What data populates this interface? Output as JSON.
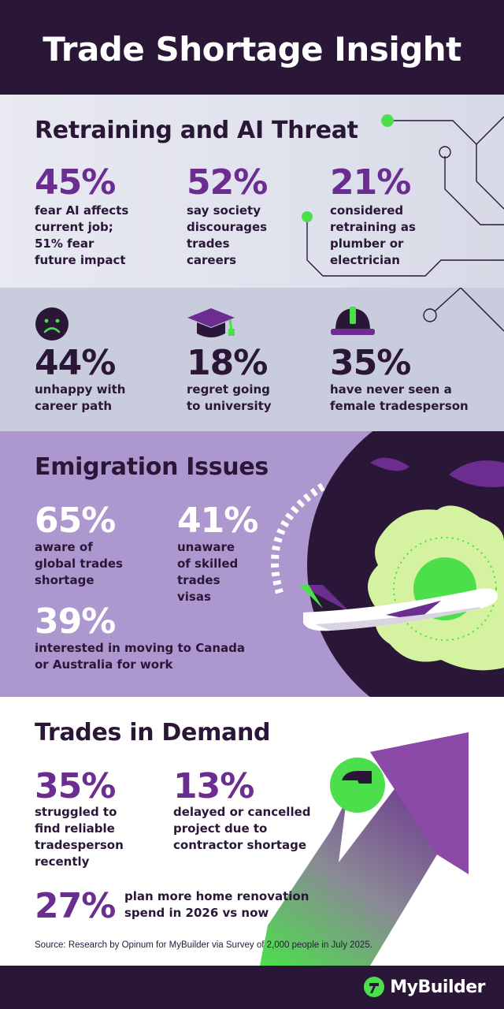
{
  "title": "Trade Shortage Insight",
  "retraining": {
    "heading": "Retraining and AI Threat",
    "stats": [
      {
        "value": "45%",
        "desc": [
          "fear AI affects",
          "current job;",
          "51% fear",
          "future impact"
        ]
      },
      {
        "value": "52%",
        "desc": [
          "say society",
          "discourages",
          "trades",
          "careers"
        ]
      },
      {
        "value": "21%",
        "desc": [
          "considered",
          "retraining as",
          "plumber or",
          "electrician"
        ]
      }
    ],
    "stats2": [
      {
        "icon": "sad-face-icon",
        "value": "44%",
        "desc": [
          "unhappy with",
          "career path"
        ]
      },
      {
        "icon": "graduation-cap-icon",
        "value": "18%",
        "desc": [
          "regret going",
          "to university"
        ]
      },
      {
        "icon": "hard-hat-icon",
        "value": "35%",
        "desc": [
          "have never seen a",
          "female tradesperson"
        ]
      }
    ]
  },
  "emigration": {
    "heading": "Emigration Issues",
    "stats": [
      {
        "value": "65%",
        "desc": [
          "aware of",
          "global trades",
          "shortage"
        ]
      },
      {
        "value": "41%",
        "desc": [
          "unaware",
          "of skilled",
          "trades",
          "visas"
        ]
      },
      {
        "value": "39%",
        "desc": [
          "interested in moving to Canada",
          "or Australia for work"
        ]
      }
    ]
  },
  "demand": {
    "heading": "Trades in Demand",
    "stats": [
      {
        "value": "35%",
        "desc": [
          "struggled to",
          "find reliable",
          "tradesperson",
          "recently"
        ]
      },
      {
        "value": "13%",
        "desc": [
          "delayed or cancelled",
          "project due to",
          "contractor shortage"
        ]
      },
      {
        "value": "27%",
        "desc": [
          "plan more home renovation",
          "spend in 2026 vs now"
        ]
      }
    ]
  },
  "source": "Source: Research by Opinum for MyBuilder via Survey of 2,000 people in July 2025.",
  "brand": {
    "name": "MyBuilder",
    "icon": "mybuilder-logo-icon"
  },
  "colors": {
    "dark": "#2a1738",
    "purple": "#6b2d8f",
    "lavender": "#ad97cf",
    "green": "#4be04b",
    "lime": "#d4f2a0",
    "grey": "#c9ccdd"
  }
}
